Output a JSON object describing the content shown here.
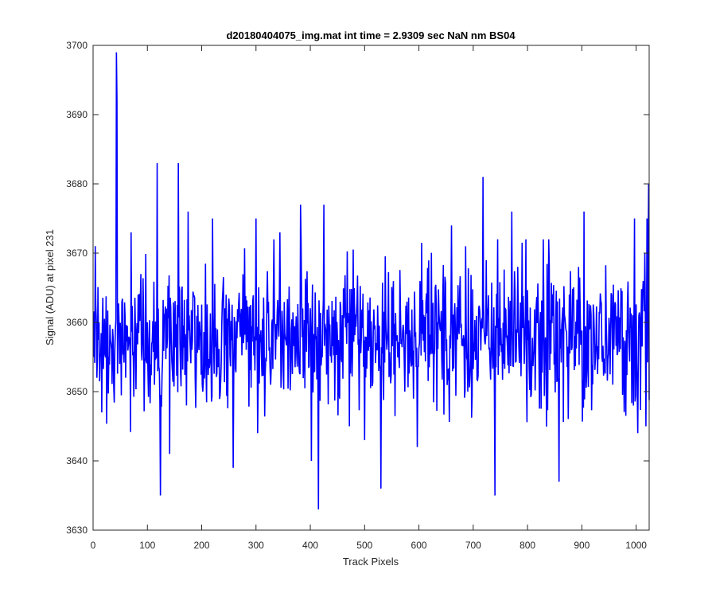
{
  "chart_data": {
    "type": "line",
    "title": "d20180404075_img.mat int time = 2.9309 sec  NaN nm BS04",
    "xlabel": "Track Pixels",
    "ylabel": "Signal (ADU) at pixel 231",
    "xlim": [
      0,
      1024
    ],
    "ylim": [
      3630,
      3700
    ],
    "x_ticks": [
      0,
      100,
      200,
      300,
      400,
      500,
      600,
      700,
      800,
      900,
      1000
    ],
    "y_ticks": [
      3630,
      3640,
      3650,
      3660,
      3670,
      3680,
      3690,
      3700
    ],
    "grid": false,
    "legend": "none",
    "series": [
      {
        "color": "#0000ff",
        "n_points": 1024,
        "baseline": 3658,
        "noise_amplitude": 6,
        "x": [
          1,
          4,
          7,
          11,
          16,
          29,
          43,
          44,
          49,
          60,
          70,
          83,
          100,
          118,
          124,
          135,
          141,
          157,
          160,
          175,
          202,
          220,
          245,
          258,
          300,
          344,
          382,
          402,
          415,
          425,
          472,
          500,
          530,
          574,
          597,
          660,
          690,
          710,
          718,
          740,
          771,
          829,
          858,
          904,
          957,
          997,
          1003,
          1016,
          1018,
          1020,
          1023
        ],
        "y": [
          3655,
          3671,
          3652,
          3660,
          3647,
          3655,
          3699,
          3692,
          3654,
          3652,
          3673,
          3664,
          3660,
          3683,
          3635,
          3662,
          3641,
          3683,
          3657,
          3676,
          3650,
          3675,
          3664,
          3639,
          3675,
          3673,
          3677,
          3640,
          3633,
          3677,
          3645,
          3643,
          3636,
          3650,
          3642,
          3674,
          3650,
          3662,
          3681,
          3635,
          3676,
          3672,
          3637,
          3676,
          3651,
          3675,
          3644,
          3670,
          3645,
          3675,
          3680
        ]
      }
    ]
  }
}
